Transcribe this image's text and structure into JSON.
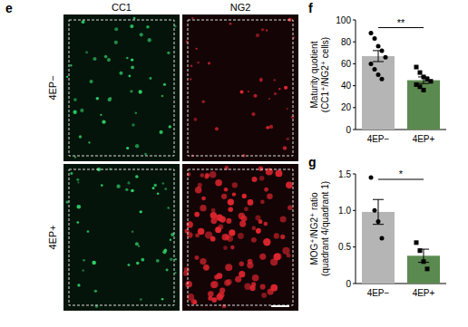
{
  "panel_labels": [
    "e",
    "f",
    "g"
  ],
  "images": {
    "columns": [
      "CC1",
      "NG2"
    ],
    "rows": [
      "4EP−",
      "4EP+"
    ],
    "colors": [
      "#2fd16a",
      "#e0262f"
    ]
  },
  "chart_data": [
    {
      "type": "bar",
      "title": "Maturity quotient",
      "subtitle": "(CC1⁺/NG2⁺ cells)",
      "categories": [
        "4EP−",
        "4EP+"
      ],
      "values": [
        67,
        45
      ],
      "errors": [
        5,
        3
      ],
      "colors": [
        "#b5b5b5",
        "#5b8a50"
      ],
      "points": [
        [
          88,
          83,
          76,
          72,
          66,
          60,
          55,
          50,
          46
        ],
        [
          57,
          52,
          48,
          46,
          44,
          41,
          39,
          36
        ]
      ],
      "ylim": [
        0,
        100
      ],
      "yticks": [
        0,
        20,
        40,
        60,
        80,
        100
      ],
      "annotations": [
        "**"
      ]
    },
    {
      "type": "bar",
      "title": "MOG⁺/NG2⁺ ratio",
      "subtitle": "(quadrant 4/quadrant 1)",
      "categories": [
        "4EP−",
        "4EP+"
      ],
      "values": [
        0.98,
        0.38
      ],
      "errors": [
        0.17,
        0.09
      ],
      "colors": [
        "#b5b5b5",
        "#5b8a50"
      ],
      "points": [
        [
          1.45,
          1.0,
          0.85,
          0.62
        ],
        [
          0.56,
          0.45,
          0.3,
          0.2
        ]
      ],
      "ylim": [
        0,
        1.5
      ],
      "yticks": [
        0,
        {
          "value": 0.5,
          "label": "0.5"
        },
        {
          "value": 1.0,
          "label": "1.0"
        },
        {
          "value": 1.5,
          "label": "1.5"
        }
      ],
      "annotations": [
        "*"
      ]
    }
  ]
}
